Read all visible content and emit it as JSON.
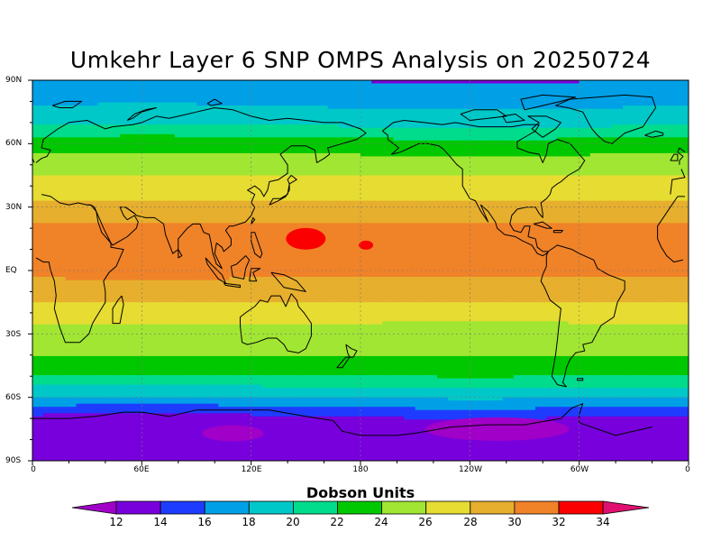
{
  "title": "Umkehr Layer 6 SNP OMPS Analysis on 20250724",
  "lat_labels": [
    "90N",
    "60N",
    "30N",
    "EQ",
    "30S",
    "60S",
    "90S"
  ],
  "lon_labels": [
    "0",
    "60E",
    "120E",
    "180",
    "120W",
    "60W",
    "0"
  ],
  "colorbar": {
    "label": "Dobson Units",
    "ticks": [
      "12",
      "14",
      "16",
      "18",
      "20",
      "22",
      "24",
      "26",
      "28",
      "30",
      "32",
      "34"
    ],
    "colors": [
      "#a000c8",
      "#7800dc",
      "#1e3cff",
      "#00a0e6",
      "#00c8c8",
      "#00dc8c",
      "#00c800",
      "#a0e632",
      "#e6dc32",
      "#e6af2d",
      "#f08228",
      "#fa0000",
      "#e01070"
    ]
  },
  "chart_data": {
    "type": "heatmap",
    "title": "Umkehr Layer 6 SNP OMPS Analysis on 20250724",
    "projection": "equirectangular",
    "lon_range": [
      0,
      360
    ],
    "lat_range": [
      -90,
      90
    ],
    "units": "Dobson Units",
    "zonal_mean_profile": [
      {
        "lat": 90,
        "value": 17
      },
      {
        "lat": 80,
        "value": 17.5
      },
      {
        "lat": 70,
        "value": 19.5
      },
      {
        "lat": 60,
        "value": 23
      },
      {
        "lat": 50,
        "value": 25
      },
      {
        "lat": 40,
        "value": 27
      },
      {
        "lat": 30,
        "value": 28.5
      },
      {
        "lat": 20,
        "value": 30.5
      },
      {
        "lat": 10,
        "value": 31
      },
      {
        "lat": 0,
        "value": 30.5
      },
      {
        "lat": -10,
        "value": 29
      },
      {
        "lat": -20,
        "value": 27
      },
      {
        "lat": -30,
        "value": 25
      },
      {
        "lat": -40,
        "value": 24
      },
      {
        "lat": -50,
        "value": 22
      },
      {
        "lat": -60,
        "value": 18
      },
      {
        "lat": -70,
        "value": 13.5
      },
      {
        "lat": -80,
        "value": 13
      },
      {
        "lat": -90,
        "value": 13
      }
    ],
    "maxima": [
      {
        "lon": 150,
        "lat": 15,
        "value": 32.5
      },
      {
        "lon": 183,
        "lat": 12,
        "value": 32.2
      }
    ],
    "minima": [
      {
        "lon": 110,
        "lat": -77,
        "value": 11.5
      },
      {
        "lon": 255,
        "lat": -75,
        "value": 11.5
      }
    ]
  }
}
